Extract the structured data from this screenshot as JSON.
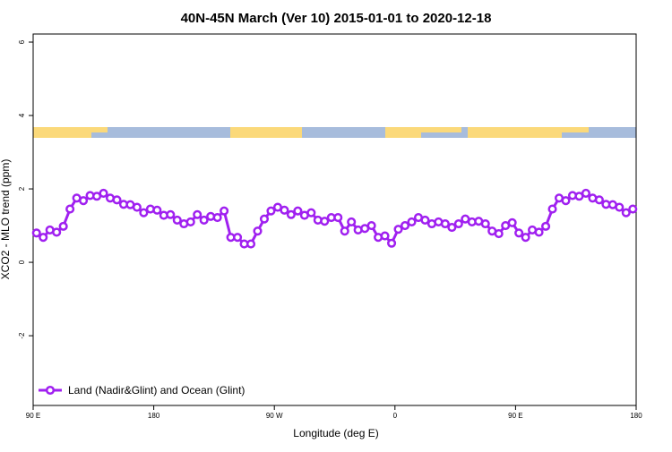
{
  "chart_data": {
    "type": "line",
    "title": "40N-45N March (Ver 10)   2015-01-01 to 2020-12-18",
    "x_label": "Longitude (deg E)",
    "y_label": "XCO2 - MLO trend (ppm)",
    "x": [
      92.5,
      97.5,
      102.5,
      107.5,
      112.5,
      117.5,
      122.5,
      127.5,
      132.5,
      137.5,
      142.5,
      147.5,
      152.5,
      157.5,
      162.5,
      167.5,
      172.5,
      177.5,
      182.5,
      187.5,
      192.5,
      197.5,
      202.5,
      207.5,
      212.5,
      217.5,
      222.5,
      227.5,
      232.5,
      237.5,
      242.5,
      247.5,
      252.5,
      257.5,
      262.5,
      267.5,
      272.5,
      277.5,
      282.5,
      287.5,
      292.5,
      297.5,
      302.5,
      307.5,
      312.5,
      317.5,
      322.5,
      327.5,
      332.5,
      337.5,
      342.5,
      347.5,
      352.5,
      357.5,
      362.5,
      367.5,
      372.5,
      377.5,
      382.5,
      387.5,
      392.5,
      397.5,
      402.5,
      407.5,
      412.5,
      417.5,
      422.5,
      427.5,
      432.5,
      437.5,
      442.5,
      447.5,
      452.5,
      457.5,
      462.5,
      467.5,
      472.5,
      477.5,
      482.5,
      487.5,
      492.5,
      497.5,
      502.5,
      507.5,
      512.5,
      517.5,
      522.5,
      527.5,
      532.5,
      537.5
    ],
    "series": [
      {
        "name": "Land (Nadir&Glint) and Ocean (Glint)",
        "color": "#a020f0",
        "values": [
          0.8,
          0.68,
          0.88,
          0.82,
          0.98,
          1.45,
          1.75,
          1.68,
          1.82,
          1.8,
          1.88,
          1.75,
          1.7,
          1.58,
          1.57,
          1.5,
          1.35,
          1.45,
          1.42,
          1.28,
          1.3,
          1.15,
          1.05,
          1.1,
          1.3,
          1.15,
          1.25,
          1.22,
          1.4,
          0.68,
          0.68,
          0.5,
          0.5,
          0.85,
          1.18,
          1.4,
          1.5,
          1.42,
          1.3,
          1.4,
          1.28,
          1.35,
          1.15,
          1.12,
          1.22,
          1.22,
          0.85,
          1.1,
          0.88,
          0.92,
          1.0,
          0.68,
          0.72,
          0.52,
          0.9,
          1.0,
          1.1,
          1.22,
          1.15,
          1.05,
          1.1,
          1.05,
          0.95,
          1.05,
          1.18,
          1.1,
          1.12,
          1.05,
          0.85,
          0.78,
          1.0,
          1.08,
          0.8,
          0.68,
          0.88,
          0.82,
          0.98,
          1.45,
          1.75,
          1.68,
          1.82,
          1.8,
          1.88,
          1.75,
          1.7,
          1.58,
          1.57,
          1.5,
          1.35,
          1.45
        ]
      }
    ],
    "xlim": [
      90,
      540
    ],
    "xticks": [
      {
        "value": 90,
        "label": "90 E"
      },
      {
        "value": 180,
        "label": "180"
      },
      {
        "value": 270,
        "label": "90 W"
      },
      {
        "value": 360,
        "label": "0"
      },
      {
        "value": 450,
        "label": "90 E"
      },
      {
        "value": 540,
        "label": "180"
      }
    ],
    "ylim": [
      -3.9,
      6.22
    ],
    "yticks": [
      -2,
      0,
      2,
      4,
      6
    ],
    "legend": "bottom-left"
  }
}
